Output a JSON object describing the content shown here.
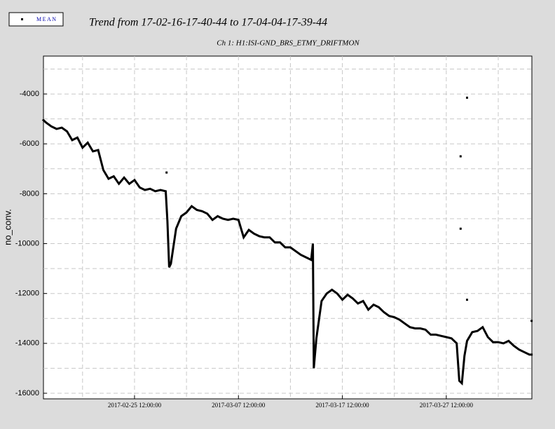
{
  "chart_data": {
    "type": "line",
    "title": "Trend from 17-02-16-17-40-44 to 17-04-04-17-39-44",
    "subtitle": "Ch 1: H1:ISI-GND_BRS_ETMY_DRIFTMON",
    "ylabel": "no_conv.",
    "xlim": [
      "2017-02-16 17:40:44",
      "2017-04-04 17:39:44"
    ],
    "xticks": [
      "2017-02-25 12:00:00",
      "2017-03-07 12:00:00",
      "2017-03-17 12:00:00",
      "2017-03-27 12:00:00"
    ],
    "minor_xticks": [
      "2017-02-20 12:00:00",
      "2017-03-02 12:00:00",
      "2017-03-12 12:00:00",
      "2017-03-22 12:00:00",
      "2017-04-01 12:00:00"
    ],
    "ylim": [
      -16225,
      -2480
    ],
    "yticks": [
      -16000,
      -14000,
      -12000,
      -10000,
      -8000,
      -6000,
      -4000
    ],
    "minor_yticks": [
      -15000,
      -13000,
      -11000,
      -9000,
      -7000,
      -5000,
      -3000
    ],
    "grid": true,
    "legend": "top-left",
    "series": [
      {
        "name": "MEAN",
        "color": "#000000",
        "x": [
          "2017-02-16 17:40:44",
          "2017-02-17 00:00:00",
          "2017-02-17 12:00:00",
          "2017-02-18 00:00:00",
          "2017-02-18 12:00:00",
          "2017-02-19 00:00:00",
          "2017-02-19 12:00:00",
          "2017-02-20 00:00:00",
          "2017-02-20 12:00:00",
          "2017-02-21 00:00:00",
          "2017-02-21 12:00:00",
          "2017-02-22 00:00:00",
          "2017-02-22 12:00:00",
          "2017-02-23 00:00:00",
          "2017-02-23 12:00:00",
          "2017-02-24 00:00:00",
          "2017-02-24 12:00:00",
          "2017-02-25 00:00:00",
          "2017-02-25 12:00:00",
          "2017-02-26 00:00:00",
          "2017-02-26 12:00:00",
          "2017-02-27 00:00:00",
          "2017-02-27 12:00:00",
          "2017-02-28 00:00:00",
          "2017-02-28 12:00:00",
          "2017-02-28 16:00:00",
          "2017-02-28 20:00:00",
          "2017-03-01 00:00:00",
          "2017-03-01 12:00:00",
          "2017-03-02 00:00:00",
          "2017-03-02 12:00:00",
          "2017-03-03 00:00:00",
          "2017-03-03 12:00:00",
          "2017-03-04 00:00:00",
          "2017-03-04 12:00:00",
          "2017-03-05 00:00:00",
          "2017-03-05 12:00:00",
          "2017-03-06 00:00:00",
          "2017-03-06 12:00:00",
          "2017-03-07 00:00:00",
          "2017-03-07 12:00:00",
          "2017-03-08 00:00:00",
          "2017-03-08 12:00:00",
          "2017-03-09 00:00:00",
          "2017-03-09 12:00:00",
          "2017-03-10 00:00:00",
          "2017-03-10 12:00:00",
          "2017-03-11 00:00:00",
          "2017-03-11 12:00:00",
          "2017-03-12 00:00:00",
          "2017-03-12 12:00:00",
          "2017-03-13 00:00:00",
          "2017-03-13 12:00:00",
          "2017-03-14 00:00:00",
          "2017-03-14 12:00:00",
          "2017-03-14 16:00:00",
          "2017-03-14 18:00:00",
          "2017-03-14 20:00:00",
          "2017-03-15 00:00:00",
          "2017-03-15 12:00:00",
          "2017-03-16 00:00:00",
          "2017-03-16 12:00:00",
          "2017-03-17 00:00:00",
          "2017-03-17 12:00:00",
          "2017-03-18 00:00:00",
          "2017-03-18 12:00:00",
          "2017-03-19 00:00:00",
          "2017-03-19 12:00:00",
          "2017-03-20 00:00:00",
          "2017-03-20 12:00:00",
          "2017-03-21 00:00:00",
          "2017-03-21 12:00:00",
          "2017-03-22 00:00:00",
          "2017-03-22 12:00:00",
          "2017-03-23 00:00:00",
          "2017-03-23 12:00:00",
          "2017-03-24 00:00:00",
          "2017-03-24 12:00:00",
          "2017-03-25 00:00:00",
          "2017-03-25 12:00:00",
          "2017-03-26 00:00:00",
          "2017-03-26 12:00:00",
          "2017-03-27 00:00:00",
          "2017-03-27 12:00:00",
          "2017-03-28 00:00:00",
          "2017-03-28 12:00:00",
          "2017-03-28 18:00:00",
          "2017-03-29 00:00:00",
          "2017-03-29 06:00:00",
          "2017-03-29 12:00:00",
          "2017-03-30 00:00:00",
          "2017-03-30 12:00:00",
          "2017-03-31 00:00:00",
          "2017-03-31 12:00:00",
          "2017-04-01 00:00:00",
          "2017-04-01 12:00:00",
          "2017-04-02 00:00:00",
          "2017-04-02 12:00:00",
          "2017-04-03 00:00:00",
          "2017-04-03 12:00:00",
          "2017-04-04 00:00:00",
          "2017-04-04 12:00:00",
          "2017-04-04 17:00:00",
          "2017-02-28 14:00:00",
          "2017-02-28 14:00:00",
          "2017-02-28 14:00:00",
          "2017-03-28 21:00:00",
          "2017-03-28 21:00:00",
          "2017-03-28 21:00:00",
          "2017-03-28 21:00:00",
          "2017-03-29 12:00:00",
          "2017-03-29 12:00:00",
          "2017-03-29 12:00:00",
          "2017-03-29 12:00:00",
          "2017-04-04 17:00:00",
          "2017-04-04 17:00:00"
        ],
        "values": [
          -5050,
          -5150,
          -5300,
          -5400,
          -5350,
          -5500,
          -5850,
          -5750,
          -6150,
          -5950,
          -6300,
          -6250,
          -7050,
          -7400,
          -7300,
          -7600,
          -7350,
          -7600,
          -7450,
          -7750,
          -7850,
          -7800,
          -7900,
          -7850,
          -7900,
          -9100,
          -10950,
          -10800,
          -9400,
          -8900,
          -8750,
          -8500,
          -8650,
          -8700,
          -8800,
          -9050,
          -8900,
          -9000,
          -9050,
          -9000,
          -9050,
          -9750,
          -9450,
          -9600,
          -9700,
          -9750,
          -9750,
          -9950,
          -9950,
          -10150,
          -10150,
          -10300,
          -10450,
          -10550,
          -10650,
          -10000,
          -15000,
          -14600,
          -13800,
          -12300,
          -12000,
          -11850,
          -12000,
          -12250,
          -12050,
          -12200,
          -12400,
          -12300,
          -12650,
          -12450,
          -12550,
          -12750,
          -12900,
          -12950,
          -13050,
          -13200,
          -13350,
          -13400,
          -13400,
          -13450,
          -13650,
          -13650,
          -13700,
          -13750,
          -13800,
          -14000,
          -15500,
          -15600,
          -14500,
          -13900,
          -13550,
          -13500,
          -13350,
          -13750,
          -13950,
          -13950,
          -14000,
          -13900,
          -14100,
          -14250,
          -14350,
          -14450,
          -14450,
          null,
          -7150,
          null,
          -6500,
          null,
          -9400,
          null,
          -4150,
          null,
          -12250,
          null,
          -13100,
          null
        ]
      }
    ]
  }
}
